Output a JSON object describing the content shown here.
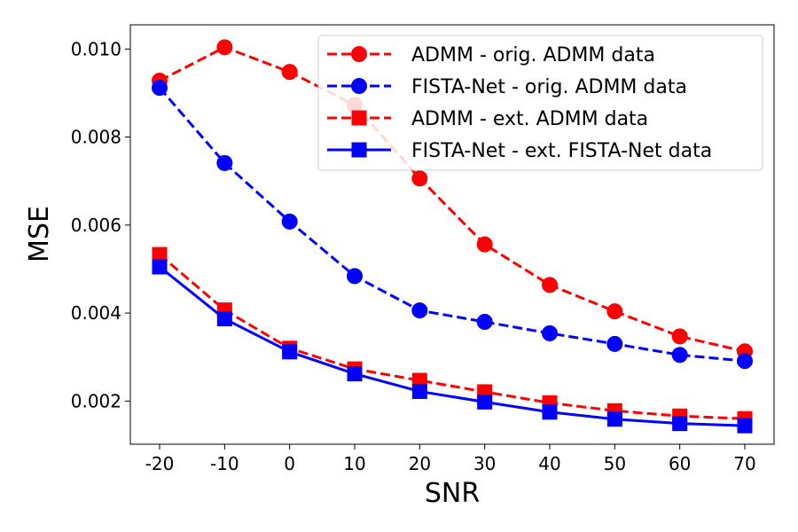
{
  "chart_data": {
    "type": "line",
    "title": "",
    "xlabel": "SNR",
    "ylabel": "MSE",
    "categories": [
      "-20",
      "-10",
      "0",
      "10",
      "20",
      "30",
      "40",
      "50",
      "60",
      "70"
    ],
    "ylim": [
      0.00102,
      0.01055
    ],
    "yticks": [
      0.002,
      0.004,
      0.006,
      0.008,
      0.01
    ],
    "ytick_labels": [
      "0.002",
      "0.004",
      "0.006",
      "0.008",
      "0.010"
    ],
    "grid": false,
    "legend_position": "top-right",
    "series": [
      {
        "name": "ADMM - orig. ADMM data",
        "color": "#ff0000",
        "marker": "circle",
        "line_style": "dashed",
        "values": [
          0.00928,
          0.01004,
          0.00948,
          0.00873,
          0.00706,
          0.00556,
          0.00464,
          0.00404,
          0.00347,
          0.00313
        ]
      },
      {
        "name": "FISTA-Net - orig. ADMM data",
        "color": "#0000ff",
        "marker": "circle",
        "line_style": "dashed",
        "values": [
          0.00912,
          0.00741,
          0.00608,
          0.00484,
          0.00406,
          0.0038,
          0.00354,
          0.0033,
          0.00305,
          0.00291
        ]
      },
      {
        "name": "ADMM - ext. ADMM data",
        "color": "#ff0000",
        "marker": "square",
        "line_style": "dashed",
        "values": [
          0.00533,
          0.00407,
          0.0032,
          0.00273,
          0.00247,
          0.00221,
          0.00196,
          0.00178,
          0.00166,
          0.0016
        ]
      },
      {
        "name": "FISTA-Net - ext. FISTA-Net data",
        "color": "#0000ff",
        "marker": "square",
        "line_style": "solid",
        "values": [
          0.00505,
          0.00387,
          0.00312,
          0.00262,
          0.00222,
          0.00198,
          0.00175,
          0.00159,
          0.00149,
          0.00144
        ]
      }
    ]
  }
}
